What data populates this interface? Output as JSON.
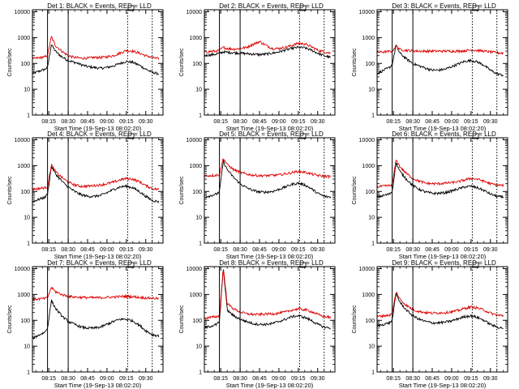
{
  "colors": {
    "events": "#000000",
    "lld": "#e00000",
    "axes": "#000000"
  },
  "shared": {
    "xlabel": "Start Time (19-Sep-13 08:02:20)",
    "ylabel": "Counts/sec",
    "xticks": [
      "08:15",
      "08:30",
      "08:45",
      "09:00",
      "09:15",
      "09:30"
    ],
    "yticks": [
      "1",
      "10",
      "100",
      "1000",
      "10000"
    ]
  },
  "chart_data": [
    {
      "type": "line",
      "title": "Det 1: BLACK = Events, RED = LLD",
      "xlabel": "Start Time (19-Sep-13 08:02:20)",
      "ylabel": "Counts/sec",
      "ylim": [
        1,
        12000
      ],
      "y_scale": "log",
      "grid": false,
      "x": [
        "08:02",
        "08:12",
        "08:14",
        "08:17",
        "08:20",
        "08:25",
        "08:30",
        "08:35",
        "08:40",
        "08:45",
        "08:50",
        "08:55",
        "09:00",
        "09:05",
        "09:10",
        "09:15",
        "09:20",
        "09:25",
        "09:30",
        "09:35",
        "09:40"
      ],
      "series": [
        {
          "values": [
            40,
            60,
            70,
            550,
            300,
            180,
            130,
            110,
            90,
            75,
            70,
            65,
            70,
            80,
            100,
            120,
            110,
            85,
            60,
            45,
            40
          ]
        },
        {
          "values": [
            150,
            180,
            200,
            1100,
            500,
            300,
            200,
            170,
            160,
            160,
            170,
            170,
            180,
            200,
            250,
            320,
            300,
            250,
            200,
            170,
            150
          ]
        }
      ]
    },
    {
      "type": "line",
      "title": "Det 2: BLACK = Events, RED = LLD",
      "xlabel": "Start Time (19-Sep-13 08:02:20)",
      "ylabel": "Counts/sec",
      "ylim": [
        1,
        12000
      ],
      "y_scale": "log",
      "grid": false,
      "x": [
        "08:02",
        "08:12",
        "08:14",
        "08:17",
        "08:20",
        "08:25",
        "08:30",
        "08:35",
        "08:40",
        "08:45",
        "08:50",
        "08:55",
        "09:00",
        "09:05",
        "09:10",
        "09:15",
        "09:20",
        "09:25",
        "09:30",
        "09:35",
        "09:40"
      ],
      "series": [
        {
          "values": [
            200,
            230,
            250,
            280,
            270,
            260,
            250,
            240,
            230,
            220,
            230,
            250,
            280,
            330,
            380,
            420,
            400,
            330,
            250,
            200,
            170
          ]
        },
        {
          "values": [
            280,
            300,
            320,
            420,
            380,
            360,
            380,
            420,
            550,
            700,
            500,
            380,
            380,
            420,
            500,
            600,
            570,
            450,
            330,
            280,
            250
          ]
        }
      ]
    },
    {
      "type": "line",
      "title": "Det 3: BLACK = Events, RED = LLD",
      "xlabel": "Start Time (19-Sep-13 08:02:20)",
      "ylabel": "Counts/sec",
      "ylim": [
        1,
        12000
      ],
      "y_scale": "log",
      "grid": false,
      "x": [
        "08:02",
        "08:12",
        "08:14",
        "08:17",
        "08:20",
        "08:25",
        "08:30",
        "08:35",
        "08:40",
        "08:45",
        "08:50",
        "08:55",
        "09:00",
        "09:05",
        "09:10",
        "09:15",
        "09:20",
        "09:25",
        "09:30",
        "09:35",
        "09:40"
      ],
      "series": [
        {
          "values": [
            40,
            70,
            90,
            500,
            250,
            150,
            100,
            80,
            65,
            55,
            55,
            60,
            75,
            95,
            120,
            130,
            115,
            85,
            55,
            40,
            35
          ]
        },
        {
          "values": [
            270,
            290,
            300,
            480,
            350,
            320,
            310,
            300,
            300,
            300,
            300,
            300,
            300,
            300,
            310,
            330,
            320,
            300,
            280,
            260,
            250
          ]
        }
      ]
    },
    {
      "type": "line",
      "title": "Det 4: BLACK = Events, RED = LLD",
      "xlabel": "Start Time (19-Sep-13 08:02:20)",
      "ylabel": "Counts/sec",
      "ylim": [
        1,
        12000
      ],
      "y_scale": "log",
      "grid": false,
      "x": [
        "08:02",
        "08:12",
        "08:14",
        "08:17",
        "08:20",
        "08:25",
        "08:30",
        "08:35",
        "08:40",
        "08:45",
        "08:50",
        "08:55",
        "09:00",
        "09:05",
        "09:10",
        "09:15",
        "09:20",
        "09:25",
        "09:30",
        "09:35",
        "09:40"
      ],
      "series": [
        {
          "values": [
            40,
            60,
            80,
            950,
            500,
            250,
            150,
            100,
            75,
            65,
            65,
            70,
            90,
            120,
            150,
            160,
            140,
            100,
            65,
            45,
            40
          ]
        },
        {
          "values": [
            120,
            140,
            150,
            1100,
            600,
            350,
            230,
            180,
            160,
            160,
            170,
            180,
            200,
            230,
            280,
            320,
            300,
            240,
            170,
            130,
            120
          ]
        }
      ]
    },
    {
      "type": "line",
      "title": "Det 5: BLACK = Events, RED = LLD",
      "xlabel": "Start Time (19-Sep-13 08:02:20)",
      "ylabel": "Counts/sec",
      "ylim": [
        1,
        12000
      ],
      "y_scale": "log",
      "grid": false,
      "x": [
        "08:02",
        "08:12",
        "08:14",
        "08:17",
        "08:20",
        "08:25",
        "08:30",
        "08:35",
        "08:40",
        "08:45",
        "08:50",
        "08:55",
        "09:00",
        "09:05",
        "09:10",
        "09:15",
        "09:20",
        "09:25",
        "09:30",
        "09:35",
        "09:40"
      ],
      "series": [
        {
          "values": [
            60,
            80,
            100,
            1500,
            700,
            350,
            200,
            140,
            110,
            95,
            95,
            100,
            120,
            150,
            190,
            210,
            180,
            130,
            85,
            65,
            60
          ]
        },
        {
          "values": [
            400,
            430,
            450,
            2000,
            1100,
            700,
            550,
            470,
            430,
            410,
            410,
            420,
            440,
            480,
            540,
            600,
            560,
            480,
            420,
            390,
            380
          ]
        }
      ]
    },
    {
      "type": "line",
      "title": "Det 6: BLACK = Events, RED = LLD",
      "xlabel": "Start Time (19-Sep-13 08:02:20)",
      "ylabel": "Counts/sec",
      "ylim": [
        1,
        12000
      ],
      "y_scale": "log",
      "grid": false,
      "x": [
        "08:02",
        "08:12",
        "08:14",
        "08:17",
        "08:20",
        "08:25",
        "08:30",
        "08:35",
        "08:40",
        "08:45",
        "08:50",
        "08:55",
        "09:00",
        "09:05",
        "09:10",
        "09:15",
        "09:20",
        "09:25",
        "09:30",
        "09:35",
        "09:40"
      ],
      "series": [
        {
          "values": [
            60,
            80,
            100,
            1300,
            600,
            300,
            170,
            120,
            95,
            85,
            85,
            90,
            105,
            125,
            150,
            160,
            140,
            110,
            80,
            65,
            60
          ]
        },
        {
          "values": [
            150,
            170,
            180,
            1700,
            900,
            500,
            320,
            250,
            210,
            200,
            200,
            210,
            220,
            240,
            280,
            320,
            300,
            250,
            200,
            180,
            170
          ]
        }
      ]
    },
    {
      "type": "line",
      "title": "Det 7: BLACK = Events, RED = LLD",
      "xlabel": "Start Time (19-Sep-13 08:02:20)",
      "ylabel": "Counts/sec",
      "ylim": [
        1,
        12000
      ],
      "y_scale": "log",
      "grid": false,
      "x": [
        "08:02",
        "08:12",
        "08:14",
        "08:17",
        "08:20",
        "08:25",
        "08:30",
        "08:35",
        "08:40",
        "08:45",
        "08:50",
        "08:55",
        "09:00",
        "09:05",
        "09:10",
        "09:15",
        "09:20",
        "09:25",
        "09:30",
        "09:35",
        "09:40"
      ],
      "series": [
        {
          "values": [
            20,
            35,
            50,
            600,
            300,
            150,
            90,
            70,
            55,
            50,
            50,
            55,
            70,
            90,
            110,
            110,
            95,
            65,
            40,
            28,
            25
          ]
        },
        {
          "values": [
            650,
            700,
            750,
            1900,
            1300,
            1000,
            850,
            800,
            780,
            760,
            750,
            760,
            780,
            800,
            830,
            850,
            820,
            780,
            740,
            720,
            700
          ]
        }
      ]
    },
    {
      "type": "line",
      "title": "Det 8: BLACK = Events, RED = LLD",
      "xlabel": "Start Time (19-Sep-13 08:02:20)",
      "ylabel": "Counts/sec",
      "ylim": [
        1,
        12000
      ],
      "y_scale": "log",
      "grid": false,
      "x": [
        "08:02",
        "08:12",
        "08:14",
        "08:17",
        "08:20",
        "08:25",
        "08:30",
        "08:35",
        "08:40",
        "08:45",
        "08:50",
        "08:55",
        "09:00",
        "09:05",
        "09:10",
        "09:15",
        "09:20",
        "09:25",
        "09:30",
        "09:35",
        "09:40"
      ],
      "series": [
        {
          "values": [
            50,
            70,
            90,
            11000,
            250,
            150,
            110,
            90,
            75,
            70,
            70,
            75,
            90,
            110,
            140,
            150,
            130,
            100,
            70,
            55,
            50
          ]
        },
        {
          "values": [
            120,
            140,
            150,
            11000,
            450,
            280,
            210,
            180,
            170,
            170,
            175,
            180,
            190,
            210,
            250,
            280,
            260,
            220,
            170,
            140,
            130
          ]
        }
      ]
    },
    {
      "type": "line",
      "title": "Det 9: BLACK = Events, RED = LLD",
      "xlabel": "Start Time (19-Sep-13 08:02:20)",
      "ylabel": "Counts/sec",
      "ylim": [
        1,
        12000
      ],
      "y_scale": "log",
      "grid": false,
      "x": [
        "08:02",
        "08:12",
        "08:14",
        "08:17",
        "08:20",
        "08:25",
        "08:30",
        "08:35",
        "08:40",
        "08:45",
        "08:50",
        "08:55",
        "09:00",
        "09:05",
        "09:10",
        "09:15",
        "09:20",
        "09:25",
        "09:30",
        "09:35",
        "09:40"
      ],
      "series": [
        {
          "values": [
            60,
            80,
            100,
            1100,
            500,
            250,
            150,
            110,
            90,
            80,
            80,
            85,
            95,
            115,
            140,
            150,
            130,
            100,
            70,
            55,
            50
          ]
        },
        {
          "values": [
            140,
            160,
            180,
            1300,
            650,
            380,
            260,
            220,
            200,
            190,
            195,
            200,
            215,
            240,
            290,
            330,
            300,
            250,
            190,
            160,
            150
          ]
        }
      ]
    }
  ]
}
